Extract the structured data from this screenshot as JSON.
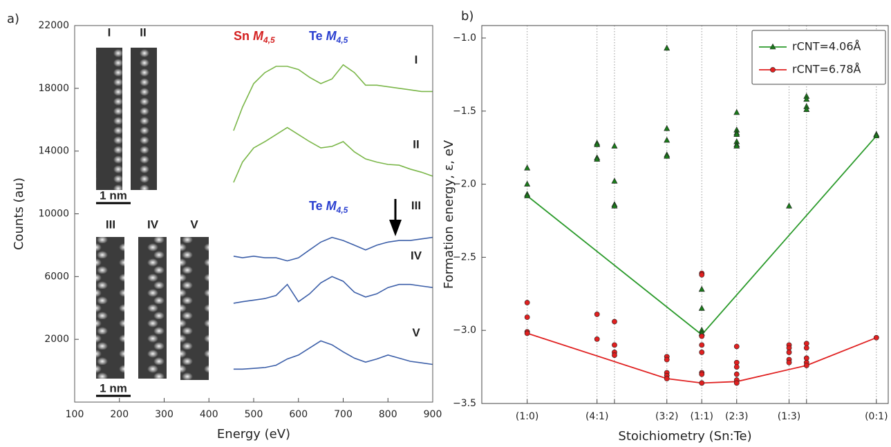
{
  "chart_data": [
    {
      "type": "line",
      "panel_label": "a)",
      "xlabel": "Energy (eV)",
      "ylabel": "Counts (au)",
      "x": [
        455,
        475,
        500,
        525,
        550,
        575,
        600,
        625,
        650,
        675,
        700,
        725,
        750,
        775,
        800,
        825,
        850,
        875,
        900
      ],
      "xlim": [
        100,
        900
      ],
      "xticks": [
        100,
        200,
        300,
        400,
        500,
        600,
        700,
        800,
        900
      ],
      "ylim": [
        -2000,
        22000
      ],
      "yticks": [
        2000,
        6000,
        10000,
        14000,
        18000,
        22000
      ],
      "series": [
        {
          "name": "I",
          "color": "#7ab648",
          "values": [
            15300,
            16800,
            18300,
            19000,
            19400,
            19400,
            19200,
            18700,
            18300,
            18600,
            19500,
            19000,
            18200,
            18200,
            18100,
            18000,
            17900,
            17800,
            17800
          ]
        },
        {
          "name": "II",
          "color": "#7ab648",
          "values": [
            12000,
            13300,
            14200,
            14600,
            15050,
            15500,
            15050,
            14600,
            14200,
            14300,
            14600,
            13950,
            13500,
            13300,
            13150,
            13100,
            12850,
            12650,
            12400
          ]
        },
        {
          "name": "III",
          "color": "#3b5ea8",
          "values": [
            7300,
            7200,
            7300,
            7200,
            7200,
            7000,
            7200,
            7700,
            8200,
            8500,
            8300,
            8000,
            7700,
            8000,
            8200,
            8300,
            8300,
            8400,
            8500
          ]
        },
        {
          "name": "IV",
          "color": "#3b5ea8",
          "values": [
            4300,
            4400,
            4500,
            4600,
            4800,
            5500,
            4400,
            4900,
            5600,
            6000,
            5700,
            5000,
            4700,
            4900,
            5300,
            5500,
            5500,
            5400,
            5300
          ]
        },
        {
          "name": "V",
          "color": "#3b5ea8",
          "values": [
            100,
            100,
            150,
            200,
            350,
            750,
            1000,
            1450,
            1900,
            1650,
            1200,
            800,
            550,
            750,
            1000,
            800,
            600,
            500,
            400
          ]
        }
      ],
      "annotations": [
        {
          "color": "#d42020",
          "parts": [
            {
              "text": "Sn "
            },
            {
              "text": "M",
              "style": "italic"
            },
            {
              "text": "4,5",
              "style": "sub"
            }
          ]
        },
        {
          "color": "#2a3fd0",
          "parts": [
            {
              "text": "Te "
            },
            {
              "text": "M",
              "style": "italic"
            },
            {
              "text": "4,5",
              "style": "sub"
            }
          ]
        },
        {
          "color": "#2a3fd0",
          "parts": [
            {
              "text": "Te "
            },
            {
              "text": "M",
              "style": "italic"
            },
            {
              "text": "4,5",
              "style": "sub"
            }
          ]
        }
      ],
      "image_labels": [
        "I",
        "II",
        "III",
        "IV",
        "V"
      ],
      "scale_bars": [
        "1 nm",
        "1 nm"
      ]
    },
    {
      "type": "scatter",
      "panel_label": "b)",
      "xlabel": "Stoichiometry (Sn:Te)",
      "ylabel": "Formation energy, ε, eV",
      "xlim": [
        -0.13,
        1.034
      ],
      "xticks": [
        {
          "value": 0,
          "label": "(1:0)"
        },
        {
          "value": 0.2,
          "label": "(4:1)"
        },
        {
          "value": 0.25,
          "label": null
        },
        {
          "value": 0.4,
          "label": "(3:2)"
        },
        {
          "value": 0.5,
          "label": "(1:1)"
        },
        {
          "value": 0.6,
          "label": "(2:3)"
        },
        {
          "value": 0.75,
          "label": "(1:3)"
        },
        {
          "value": 0.8,
          "label": null
        },
        {
          "value": 1,
          "label": "(0:1)"
        }
      ],
      "ylim": [
        -3.5,
        -0.915
      ],
      "yticks": [
        {
          "value": -3.5,
          "label": "−3.5"
        },
        {
          "value": -3.0,
          "label": "−3.0"
        },
        {
          "value": -2.5,
          "label": "−2.5"
        },
        {
          "value": -2.0,
          "label": "−2.0"
        },
        {
          "value": -1.5,
          "label": "−1.5"
        },
        {
          "value": -1.0,
          "label": "−1.0"
        }
      ],
      "grid": "x",
      "legend": "upper right",
      "series": [
        {
          "name": "rCNT=4.06Å",
          "color": "#1a7a1a",
          "marker": "triangle",
          "x": [
            0,
            0,
            0,
            0,
            0.2,
            0.2,
            0.2,
            0.2,
            0.25,
            0.25,
            0.25,
            0.25,
            0.4,
            0.4,
            0.4,
            0.4,
            0.4,
            0.5,
            0.5,
            0.5,
            0.5,
            0.6,
            0.6,
            0.6,
            0.6,
            0.6,
            0.6,
            0.6,
            0.75,
            0.8,
            0.8,
            0.8,
            0.8,
            1,
            1
          ],
          "values": [
            -1.89,
            -2.0,
            -2.07,
            -2.08,
            -1.72,
            -1.73,
            -1.82,
            -1.83,
            -1.74,
            -1.98,
            -2.14,
            -2.15,
            -1.07,
            -1.62,
            -1.7,
            -1.8,
            -1.81,
            -2.72,
            -2.85,
            -3.0,
            -3.02,
            -1.51,
            -1.63,
            -1.65,
            -1.66,
            -1.71,
            -1.73,
            -1.74,
            -2.15,
            -1.4,
            -1.42,
            -1.47,
            -1.49,
            -1.66,
            -1.67
          ],
          "fit_x": [
            0,
            0.5,
            1
          ],
          "fit_values": [
            -2.08,
            -3.03,
            -1.67
          ]
        },
        {
          "name": "rCNT=6.78Å",
          "color": "#e02020",
          "marker": "circle",
          "x": [
            0,
            0,
            0,
            0,
            0.2,
            0.2,
            0.25,
            0.25,
            0.25,
            0.25,
            0.4,
            0.4,
            0.4,
            0.4,
            0.4,
            0.5,
            0.5,
            0.5,
            0.5,
            0.5,
            0.5,
            0.5,
            0.5,
            0.6,
            0.6,
            0.6,
            0.6,
            0.6,
            0.6,
            0.75,
            0.75,
            0.75,
            0.75,
            0.75,
            0.8,
            0.8,
            0.8,
            0.8,
            0.8,
            1
          ],
          "values": [
            -2.81,
            -2.91,
            -3.01,
            -3.02,
            -2.89,
            -3.06,
            -2.94,
            -3.1,
            -3.15,
            -3.17,
            -3.18,
            -3.2,
            -3.29,
            -3.31,
            -3.33,
            -2.61,
            -2.62,
            -3.04,
            -3.1,
            -3.15,
            -3.29,
            -3.3,
            -3.36,
            -3.11,
            -3.22,
            -3.25,
            -3.3,
            -3.34,
            -3.36,
            -3.1,
            -3.12,
            -3.15,
            -3.2,
            -3.22,
            -3.09,
            -3.12,
            -3.19,
            -3.22,
            -3.24,
            -3.05
          ],
          "fit_x": [
            0,
            0.4,
            0.5,
            0.6,
            0.8,
            1
          ],
          "fit_values": [
            -3.02,
            -3.33,
            -3.36,
            -3.35,
            -3.24,
            -3.05
          ]
        }
      ]
    }
  ]
}
